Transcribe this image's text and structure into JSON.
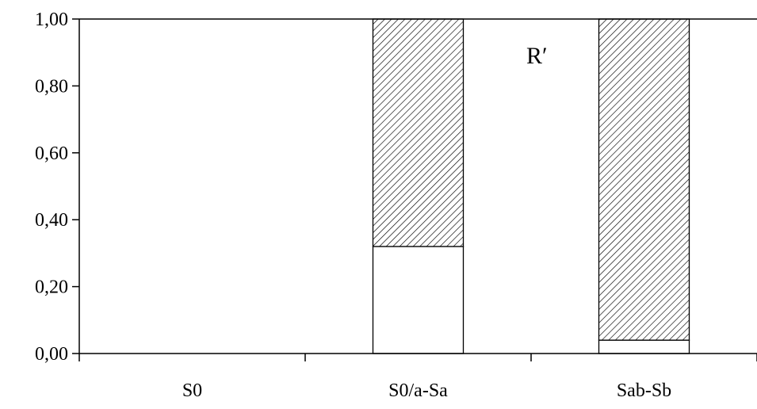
{
  "chart_data": {
    "type": "bar",
    "stacked": true,
    "categories": [
      "S0",
      "S0/a-Sa",
      "Sab-Sb"
    ],
    "series": [
      {
        "values": [
          0,
          0.32,
          0.04
        ],
        "fill": "white"
      },
      {
        "values": [
          0,
          0.68,
          0.96
        ],
        "fill": "diagonal-hatch"
      }
    ],
    "yticks": [
      "0,00",
      "0,20",
      "0,40",
      "0,60",
      "0,80",
      "1,00"
    ],
    "ylim": [
      0,
      1
    ],
    "annotation": "R′",
    "colors": {
      "stroke": "#000000",
      "background": "#ffffff"
    },
    "grid": false,
    "legend": "none"
  }
}
